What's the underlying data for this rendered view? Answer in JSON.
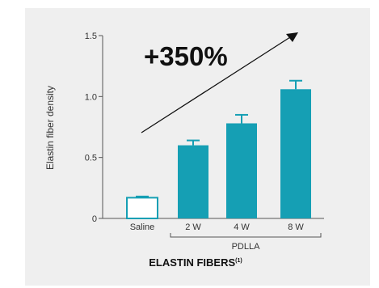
{
  "chart_data": {
    "type": "bar",
    "categories": [
      "Saline",
      "2 W",
      "4 W",
      "8 W"
    ],
    "values": [
      0.17,
      0.6,
      0.78,
      1.06
    ],
    "error_upper": [
      0.18,
      0.64,
      0.85,
      1.13
    ],
    "ylabel": "Elastin fiber density",
    "ylim": [
      0,
      1.5
    ],
    "yticks": [
      {
        "value": 0,
        "label": "0"
      },
      {
        "value": 0.5,
        "label": "0.5"
      },
      {
        "value": 1.0,
        "label": "1.0"
      },
      {
        "value": 1.5,
        "label": "1.5"
      }
    ],
    "group_label": "PDLLA",
    "xlabel": "ELASTIN FIBERS",
    "xlabel_superscript": "(1)",
    "annotation": "+350%",
    "grid": false,
    "colors": {
      "bar": "#159fb4",
      "control_fill": "#ffffff",
      "axis": "#555555",
      "background": "#efefef"
    }
  }
}
